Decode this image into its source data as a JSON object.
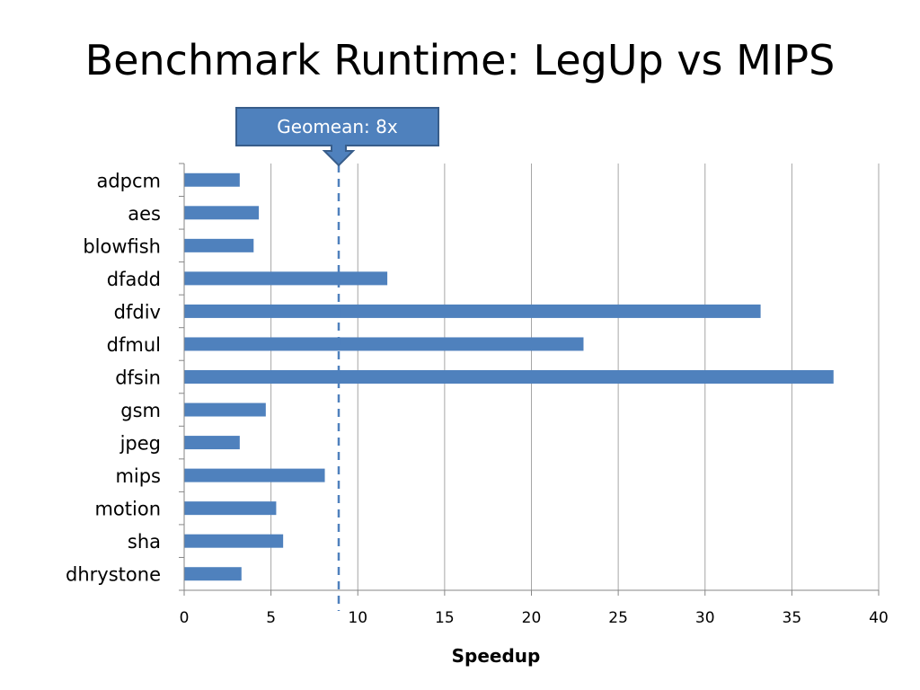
{
  "chart_data": {
    "type": "bar",
    "orientation": "horizontal",
    "title": "Benchmark Runtime: LegUp vs MIPS",
    "xlabel": "Speedup",
    "ylabel": "",
    "xlim": [
      0,
      40
    ],
    "xticks": [
      0,
      5,
      10,
      15,
      20,
      25,
      30,
      35,
      40
    ],
    "grid": true,
    "categories": [
      "adpcm",
      "aes",
      "blowfish",
      "dfadd",
      "dfdiv",
      "dfmul",
      "dfsin",
      "gsm",
      "jpeg",
      "mips",
      "motion",
      "sha",
      "dhrystone"
    ],
    "values": [
      3.2,
      4.3,
      4.0,
      11.7,
      33.2,
      23.0,
      37.4,
      4.7,
      3.2,
      8.1,
      5.3,
      5.7,
      3.3
    ],
    "colors": {
      "bar": "#4f81bd",
      "grid": "#a6a6a6",
      "axis": "#868686",
      "callout_fill": "#4f81bd",
      "callout_border": "#385d8a"
    },
    "annotations": [
      {
        "text": "Geomean: 8x",
        "x": 8.9,
        "style": "dashed-vertical-line-with-callout"
      }
    ]
  }
}
